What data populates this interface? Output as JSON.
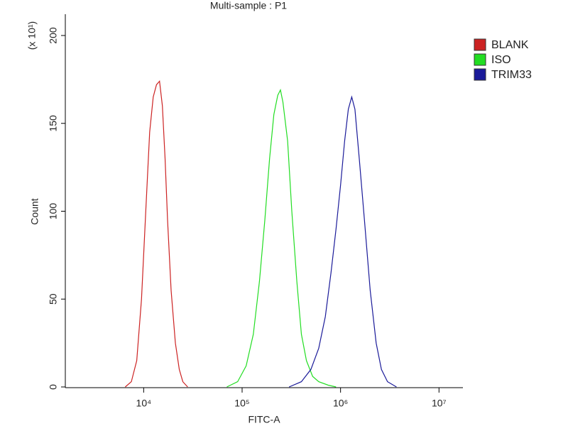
{
  "chart_data": {
    "type": "line",
    "title": "Multi-sample : P1",
    "x_label": "FITC-A",
    "y_label": "Count",
    "y_unit": "(x 10¹)",
    "log_x": true,
    "xlim": [
      1600,
      17500000
    ],
    "xticks": [
      {
        "value": 10000,
        "label": "10⁴"
      },
      {
        "value": 100000,
        "label": "10⁵"
      },
      {
        "value": 1000000,
        "label": "10⁶"
      },
      {
        "value": 10000000,
        "label": "10⁷"
      }
    ],
    "ylim": [
      0,
      200
    ],
    "yticks": [
      0,
      50,
      100,
      150,
      200
    ],
    "legend": "right",
    "series": [
      {
        "name": "BLANK",
        "color": "#cc2222",
        "x": [
          6500,
          7500,
          8500,
          9500,
          10500,
          11500,
          12500,
          13500,
          14500,
          15500,
          16500,
          17500,
          19000,
          21000,
          23000,
          25000,
          28000
        ],
        "values": [
          0,
          3,
          15,
          50,
          100,
          145,
          165,
          172,
          174,
          160,
          130,
          95,
          55,
          25,
          10,
          3,
          0
        ]
      },
      {
        "name": "ISO",
        "color": "#22dd22",
        "x": [
          70000,
          90000,
          110000,
          130000,
          150000,
          170000,
          190000,
          210000,
          230000,
          245000,
          260000,
          290000,
          320000,
          360000,
          400000,
          450000,
          520000,
          600000,
          750000,
          900000
        ],
        "values": [
          0,
          3,
          12,
          30,
          60,
          95,
          130,
          155,
          166,
          169,
          162,
          140,
          100,
          60,
          30,
          15,
          6,
          3,
          1,
          0
        ]
      },
      {
        "name": "TRIM33",
        "color": "#1a1a99",
        "x": [
          300000,
          400000,
          500000,
          600000,
          700000,
          800000,
          900000,
          1000000,
          1100000,
          1200000,
          1300000,
          1400000,
          1550000,
          1750000,
          2000000,
          2300000,
          2600000,
          3000000,
          3700000
        ],
        "values": [
          0,
          3,
          10,
          22,
          40,
          65,
          90,
          115,
          140,
          158,
          165,
          158,
          130,
          95,
          55,
          25,
          10,
          3,
          0
        ]
      }
    ]
  }
}
